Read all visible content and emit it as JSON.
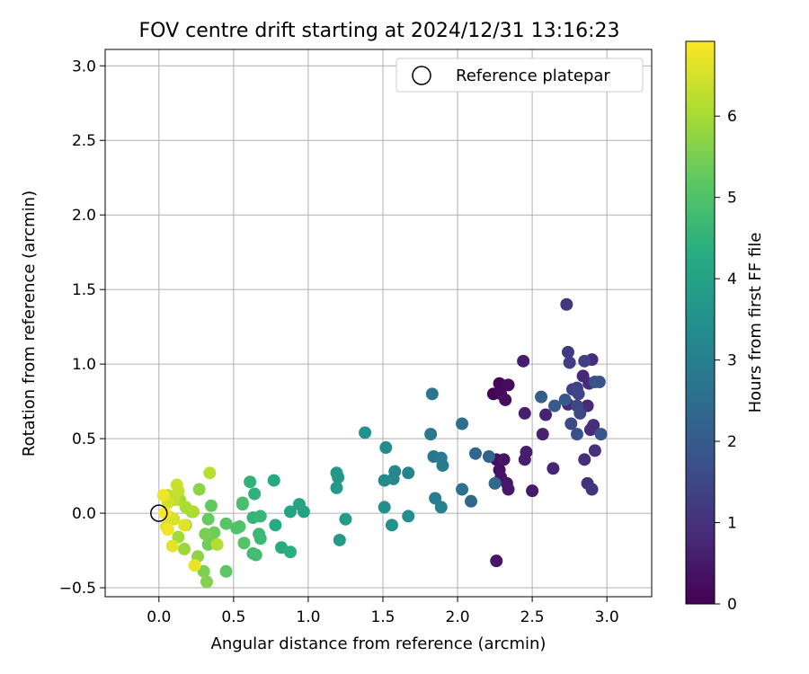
{
  "chart_data": {
    "type": "scatter",
    "title": "FOV centre drift starting at 2024/12/31 13:16:23",
    "xlabel": "Angular distance from reference (arcmin)",
    "ylabel": "Rotation from reference (arcmin)",
    "xlim": [
      -0.36,
      3.3
    ],
    "ylim": [
      -0.56,
      3.11
    ],
    "xticks": [
      "0.0",
      "0.5",
      "1.0",
      "1.5",
      "2.0",
      "2.5",
      "3.0"
    ],
    "yticks": [
      "−0.5",
      "0.0",
      "0.5",
      "1.0",
      "1.5",
      "2.0",
      "2.5",
      "3.0"
    ],
    "grid": true,
    "legend": {
      "position": "upper right",
      "entries": [
        "Reference platepar"
      ]
    },
    "reference_point": {
      "x": 0.0,
      "y": 0.0,
      "marker": "hollow circle"
    },
    "colorbar": {
      "label": "Hours from first FF file",
      "colormap": "viridis",
      "range": [
        0,
        6.92
      ],
      "ticks": [
        "0",
        "1",
        "2",
        "3",
        "4",
        "5",
        "6"
      ]
    },
    "series": [
      {
        "color_by": "hours",
        "points": [
          {
            "x": 2.24,
            "y": 0.8,
            "c": 0.05
          },
          {
            "x": 2.28,
            "y": 0.87,
            "c": 0.12
          },
          {
            "x": 2.29,
            "y": 0.8,
            "c": 0.18
          },
          {
            "x": 2.34,
            "y": 0.86,
            "c": 0.22
          },
          {
            "x": 2.32,
            "y": 0.76,
            "c": 0.28
          },
          {
            "x": 2.26,
            "y": 0.36,
            "c": 0.3
          },
          {
            "x": 2.28,
            "y": 0.29,
            "c": 0.35
          },
          {
            "x": 2.29,
            "y": 0.24,
            "c": 0.38
          },
          {
            "x": 2.31,
            "y": 0.36,
            "c": 0.42
          },
          {
            "x": 2.33,
            "y": 0.2,
            "c": 0.46
          },
          {
            "x": 2.34,
            "y": 0.16,
            "c": 0.5
          },
          {
            "x": 2.26,
            "y": -0.32,
            "c": 0.4
          },
          {
            "x": 2.44,
            "y": 1.02,
            "c": 0.55
          },
          {
            "x": 2.45,
            "y": 0.67,
            "c": 0.6
          },
          {
            "x": 2.45,
            "y": 0.36,
            "c": 0.62
          },
          {
            "x": 2.46,
            "y": 0.41,
            "c": 0.58
          },
          {
            "x": 2.5,
            "y": 0.15,
            "c": 0.52
          },
          {
            "x": 2.57,
            "y": 0.53,
            "c": 0.66
          },
          {
            "x": 2.59,
            "y": 0.66,
            "c": 0.7
          },
          {
            "x": 2.64,
            "y": 0.3,
            "c": 0.72
          },
          {
            "x": 2.74,
            "y": 0.73,
            "c": 0.78
          },
          {
            "x": 2.84,
            "y": 0.92,
            "c": 0.8
          },
          {
            "x": 2.87,
            "y": 0.72,
            "c": 0.82
          },
          {
            "x": 2.88,
            "y": 0.87,
            "c": 0.86
          },
          {
            "x": 2.9,
            "y": 1.03,
            "c": 0.9
          },
          {
            "x": 2.85,
            "y": 0.36,
            "c": 0.88
          },
          {
            "x": 2.89,
            "y": 0.56,
            "c": 0.92
          },
          {
            "x": 2.91,
            "y": 0.59,
            "c": 0.95
          },
          {
            "x": 2.92,
            "y": 0.42,
            "c": 0.98
          },
          {
            "x": 2.87,
            "y": 0.2,
            "c": 1.0
          },
          {
            "x": 2.9,
            "y": 0.16,
            "c": 1.05
          },
          {
            "x": 2.73,
            "y": 1.4,
            "c": 1.15
          },
          {
            "x": 2.74,
            "y": 1.08,
            "c": 1.2
          },
          {
            "x": 2.75,
            "y": 1.01,
            "c": 1.25
          },
          {
            "x": 2.85,
            "y": 1.02,
            "c": 1.3
          },
          {
            "x": 2.77,
            "y": 0.83,
            "c": 1.35
          },
          {
            "x": 2.8,
            "y": 0.84,
            "c": 1.4
          },
          {
            "x": 2.81,
            "y": 0.8,
            "c": 1.45
          },
          {
            "x": 2.8,
            "y": 0.72,
            "c": 1.5
          },
          {
            "x": 2.82,
            "y": 0.67,
            "c": 1.55
          },
          {
            "x": 2.76,
            "y": 0.6,
            "c": 1.6
          },
          {
            "x": 2.8,
            "y": 0.53,
            "c": 1.7
          },
          {
            "x": 2.92,
            "y": 0.88,
            "c": 1.75
          },
          {
            "x": 2.95,
            "y": 0.88,
            "c": 1.8
          },
          {
            "x": 2.96,
            "y": 0.53,
            "c": 1.85
          },
          {
            "x": 2.72,
            "y": 0.76,
            "c": 1.9
          },
          {
            "x": 2.65,
            "y": 0.72,
            "c": 1.95
          },
          {
            "x": 2.56,
            "y": 0.78,
            "c": 2.05
          },
          {
            "x": 2.09,
            "y": 0.08,
            "c": 2.3
          },
          {
            "x": 2.12,
            "y": 0.4,
            "c": 2.35
          },
          {
            "x": 2.21,
            "y": 0.38,
            "c": 2.25
          },
          {
            "x": 2.25,
            "y": 0.2,
            "c": 2.4
          },
          {
            "x": 2.03,
            "y": 0.6,
            "c": 2.55
          },
          {
            "x": 2.03,
            "y": 0.16,
            "c": 2.6
          },
          {
            "x": 1.83,
            "y": 0.8,
            "c": 2.7
          },
          {
            "x": 1.82,
            "y": 0.53,
            "c": 2.75
          },
          {
            "x": 1.84,
            "y": 0.38,
            "c": 2.8
          },
          {
            "x": 1.89,
            "y": 0.37,
            "c": 2.85
          },
          {
            "x": 1.9,
            "y": 0.32,
            "c": 2.9
          },
          {
            "x": 1.85,
            "y": 0.1,
            "c": 2.95
          },
          {
            "x": 1.89,
            "y": 0.04,
            "c": 3.0
          },
          {
            "x": 1.67,
            "y": 0.27,
            "c": 3.15
          },
          {
            "x": 1.58,
            "y": 0.28,
            "c": 3.2
          },
          {
            "x": 1.57,
            "y": 0.23,
            "c": 3.25
          },
          {
            "x": 1.51,
            "y": 0.22,
            "c": 3.3
          },
          {
            "x": 1.52,
            "y": 0.44,
            "c": 3.35
          },
          {
            "x": 1.67,
            "y": -0.02,
            "c": 3.4
          },
          {
            "x": 1.51,
            "y": 0.04,
            "c": 3.45
          },
          {
            "x": 1.56,
            "y": -0.08,
            "c": 3.5
          },
          {
            "x": 1.38,
            "y": 0.54,
            "c": 3.55
          },
          {
            "x": 1.19,
            "y": 0.27,
            "c": 3.65
          },
          {
            "x": 1.2,
            "y": 0.24,
            "c": 3.7
          },
          {
            "x": 1.19,
            "y": 0.17,
            "c": 3.75
          },
          {
            "x": 1.21,
            "y": -0.18,
            "c": 3.8
          },
          {
            "x": 1.25,
            "y": -0.04,
            "c": 3.85
          },
          {
            "x": 0.97,
            "y": 0.01,
            "c": 4.0
          },
          {
            "x": 0.94,
            "y": 0.06,
            "c": 4.05
          },
          {
            "x": 0.88,
            "y": 0.01,
            "c": 4.1
          },
          {
            "x": 0.77,
            "y": 0.22,
            "c": 4.2
          },
          {
            "x": 0.78,
            "y": -0.08,
            "c": 4.25
          },
          {
            "x": 0.82,
            "y": -0.23,
            "c": 4.3
          },
          {
            "x": 0.88,
            "y": -0.26,
            "c": 4.35
          },
          {
            "x": 0.64,
            "y": 0.13,
            "c": 4.45
          },
          {
            "x": 0.61,
            "y": 0.21,
            "c": 4.5
          },
          {
            "x": 0.63,
            "y": -0.03,
            "c": 4.55
          },
          {
            "x": 0.68,
            "y": -0.02,
            "c": 4.6
          },
          {
            "x": 0.67,
            "y": -0.14,
            "c": 4.65
          },
          {
            "x": 0.68,
            "y": -0.17,
            "c": 4.7
          },
          {
            "x": 0.63,
            "y": -0.27,
            "c": 4.75
          },
          {
            "x": 0.65,
            "y": -0.28,
            "c": 4.8
          },
          {
            "x": 0.56,
            "y": 0.06,
            "c": 4.85
          },
          {
            "x": 0.56,
            "y": 0.07,
            "c": 4.9
          },
          {
            "x": 0.52,
            "y": -0.1,
            "c": 4.95
          },
          {
            "x": 0.54,
            "y": -0.09,
            "c": 5.0
          },
          {
            "x": 0.57,
            "y": -0.2,
            "c": 5.05
          },
          {
            "x": 0.45,
            "y": -0.07,
            "c": 5.1
          },
          {
            "x": 0.45,
            "y": -0.39,
            "c": 5.15
          },
          {
            "x": 0.35,
            "y": 0.05,
            "c": 5.25
          },
          {
            "x": 0.33,
            "y": -0.04,
            "c": 5.3
          },
          {
            "x": 0.37,
            "y": -0.13,
            "c": 5.35
          },
          {
            "x": 0.33,
            "y": -0.21,
            "c": 5.4
          },
          {
            "x": 0.34,
            "y": -0.17,
            "c": 5.45
          },
          {
            "x": 0.31,
            "y": -0.14,
            "c": 5.5
          },
          {
            "x": 0.3,
            "y": -0.39,
            "c": 5.55
          },
          {
            "x": 0.32,
            "y": -0.46,
            "c": 5.6
          },
          {
            "x": 0.27,
            "y": 0.16,
            "c": 5.7
          },
          {
            "x": 0.26,
            "y": -0.29,
            "c": 5.75
          },
          {
            "x": 0.22,
            "y": 0.01,
            "c": 5.8
          },
          {
            "x": 0.18,
            "y": -0.08,
            "c": 5.85
          },
          {
            "x": 0.17,
            "y": -0.24,
            "c": 5.9
          },
          {
            "x": 0.13,
            "y": -0.16,
            "c": 5.95
          },
          {
            "x": 0.14,
            "y": 0.09,
            "c": 6.0
          },
          {
            "x": 0.18,
            "y": 0.04,
            "c": 6.05
          },
          {
            "x": 0.23,
            "y": 0.01,
            "c": 6.1
          },
          {
            "x": 0.39,
            "y": -0.21,
            "c": 6.15
          },
          {
            "x": 0.34,
            "y": 0.27,
            "c": 6.2
          },
          {
            "x": 0.06,
            "y": 0.12,
            "c": 6.25
          },
          {
            "x": 0.1,
            "y": 0.09,
            "c": 6.3
          },
          {
            "x": 0.13,
            "y": 0.15,
            "c": 6.35
          },
          {
            "x": 0.12,
            "y": 0.19,
            "c": 6.4
          },
          {
            "x": 0.06,
            "y": 0.07,
            "c": 6.45
          },
          {
            "x": 0.08,
            "y": -0.03,
            "c": 6.5
          },
          {
            "x": 0.1,
            "y": -0.04,
            "c": 6.55
          },
          {
            "x": 0.05,
            "y": -0.09,
            "c": 6.6
          },
          {
            "x": 0.17,
            "y": -0.08,
            "c": 6.62
          },
          {
            "x": 0.09,
            "y": -0.22,
            "c": 6.65
          },
          {
            "x": 0.24,
            "y": -0.35,
            "c": 6.7
          },
          {
            "x": 0.03,
            "y": 0.12,
            "c": 6.75
          },
          {
            "x": 0.06,
            "y": -0.11,
            "c": 6.8
          },
          {
            "x": 0.04,
            "y": 0.0,
            "c": 6.85
          }
        ]
      }
    ]
  }
}
